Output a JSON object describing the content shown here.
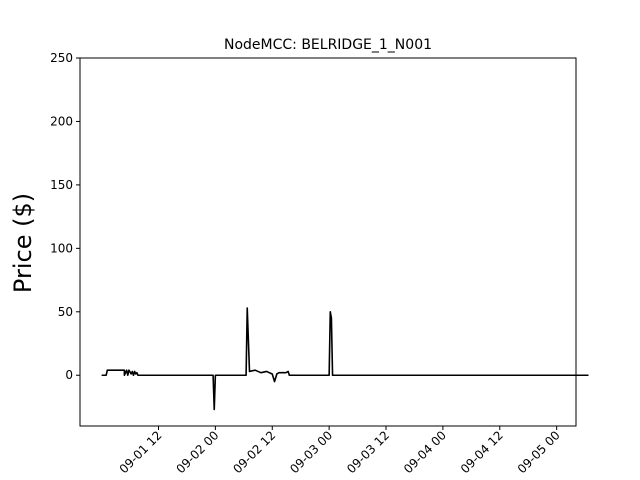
{
  "chart_data": {
    "type": "line",
    "title": "NodeMCC: BELRIDGE_1_N001",
    "xlabel": "",
    "ylabel": "Price ($)",
    "xlim": [
      -0.19,
      4.17
    ],
    "ylim": [
      -40,
      250
    ],
    "yticks": [
      0,
      50,
      100,
      150,
      200,
      250
    ],
    "xticks": [
      {
        "pos": 0.5,
        "label": "09-01 12"
      },
      {
        "pos": 1.0,
        "label": "09-02 00"
      },
      {
        "pos": 1.5,
        "label": "09-02 12"
      },
      {
        "pos": 2.0,
        "label": "09-03 00"
      },
      {
        "pos": 2.5,
        "label": "09-03 12"
      },
      {
        "pos": 3.0,
        "label": "09-04 00"
      },
      {
        "pos": 3.5,
        "label": "09-04 12"
      },
      {
        "pos": 4.0,
        "label": "09-05 00"
      }
    ],
    "grid": false,
    "legend": false,
    "color": "#000000",
    "series": [
      {
        "x": [
          0.0,
          0.04,
          0.05,
          0.1,
          0.15,
          0.2,
          0.2,
          0.22,
          0.23,
          0.24,
          0.26,
          0.27,
          0.28,
          0.29,
          0.3,
          0.31,
          0.32,
          0.34,
          0.4,
          0.5,
          0.6,
          0.7,
          0.8,
          0.9,
          0.98,
          0.99,
          1.0,
          1.01,
          1.03,
          1.05,
          1.06,
          1.08,
          1.09,
          1.1,
          1.11,
          1.12,
          1.13,
          1.15,
          1.17,
          1.2,
          1.22,
          1.25,
          1.27,
          1.28,
          1.3,
          1.35,
          1.4,
          1.45,
          1.5,
          1.52,
          1.54,
          1.56,
          1.58,
          1.6,
          1.62,
          1.64,
          1.65,
          1.7,
          1.8,
          1.9,
          1.98,
          2.0,
          2.01,
          2.02,
          2.03,
          2.04,
          2.05,
          2.07,
          2.09,
          2.1,
          2.11,
          2.12,
          2.13,
          2.14,
          2.16,
          2.18,
          2.2,
          2.22,
          2.25,
          2.28,
          2.29,
          2.3,
          2.35,
          2.4,
          2.45,
          2.5,
          2.52,
          2.54,
          2.56,
          2.58,
          2.6,
          2.62,
          2.63,
          2.7,
          2.8,
          2.9,
          2.98,
          3.0,
          3.01,
          3.02,
          3.03,
          3.05,
          3.07,
          3.09,
          3.1,
          3.11,
          3.12,
          3.13,
          3.15,
          3.17,
          3.2,
          3.22,
          3.25,
          3.27,
          3.3,
          3.31,
          3.32,
          3.35,
          3.4,
          3.44,
          3.45,
          3.46,
          3.47,
          3.48,
          3.49,
          3.5,
          3.51,
          3.52,
          3.53,
          3.54,
          3.55,
          3.56,
          3.57,
          3.6,
          3.7,
          3.8,
          3.9,
          3.98,
          3.99,
          4.0,
          4.01,
          4.02,
          4.05,
          4.08,
          4.09,
          4.1,
          4.11,
          4.12,
          4.13,
          4.14,
          4.15,
          4.17,
          4.2,
          4.23,
          4.26,
          4.28
        ],
        "y": [
          0,
          0,
          4,
          4,
          4,
          4,
          0,
          4,
          0,
          4,
          1,
          3,
          0,
          3,
          1,
          2,
          0,
          0,
          0,
          0,
          0,
          0,
          0,
          0,
          0,
          -27,
          0,
          0,
          0,
          0,
          0,
          0,
          0,
          0,
          0,
          0,
          0,
          0,
          0,
          0,
          0,
          0,
          0,
          53,
          3,
          4,
          2,
          3,
          1,
          -5,
          1,
          2,
          2,
          2,
          2,
          3,
          0,
          0,
          0,
          0,
          0,
          0,
          50,
          45,
          0,
          0,
          0,
          0,
          0,
          0,
          0,
          0,
          0,
          0,
          0,
          0,
          0,
          0,
          0,
          0,
          0,
          0,
          0,
          0,
          0,
          0,
          0,
          0,
          0,
          0,
          0,
          0,
          0,
          0,
          0,
          0,
          0,
          0,
          0,
          0,
          0,
          0,
          0,
          0,
          0,
          0,
          0,
          0,
          0,
          0,
          0,
          0,
          0,
          0,
          0,
          0,
          0,
          0,
          0,
          0,
          0,
          0,
          0,
          0,
          0,
          0,
          0,
          0,
          0,
          0,
          0,
          0,
          0,
          0,
          0,
          0,
          0,
          0,
          0,
          0,
          0,
          0,
          0,
          0,
          0,
          0,
          0,
          0,
          0,
          0,
          0,
          0,
          0,
          0,
          0,
          0
        ]
      }
    ]
  }
}
